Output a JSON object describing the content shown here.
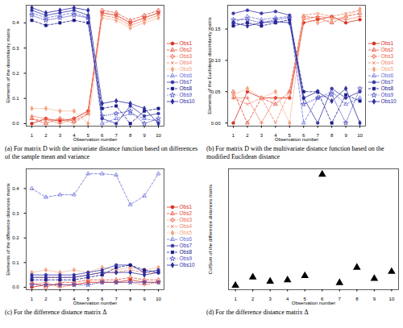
{
  "chart_data": [
    {
      "type": "line",
      "title": "(a) For matrix D with the univariate distance function based on differences of the sample mean and variance",
      "x_label": "Observation number",
      "y_label": "Elements of the dissimilarity matrix",
      "x": [
        1,
        2,
        3,
        4,
        5,
        6,
        7,
        8,
        9,
        10
      ],
      "xlim": [
        0.6,
        10.4
      ],
      "xticks": [
        1,
        2,
        3,
        4,
        5,
        6,
        7,
        8,
        9,
        10
      ],
      "ylim": [
        -0.01,
        0.47
      ],
      "yticks": [
        {
          "value": 0,
          "label": "0.0"
        },
        {
          "value": 0.1,
          "label": "0.1"
        },
        {
          "value": 0.2,
          "label": "0.2"
        },
        {
          "value": 0.3,
          "label": "0.3"
        },
        {
          "value": 0.4,
          "label": "0.4"
        }
      ],
      "legend": "right",
      "series": [
        {
          "name": "Obs1",
          "color": "#d7301f",
          "marker": "circle",
          "line_style": "solid",
          "values": [
            0.0,
            0.02,
            0.01,
            0.02,
            0.05,
            0.44,
            0.43,
            0.4,
            0.42,
            0.44
          ]
        },
        {
          "name": "Obs2",
          "color": "#e34a33",
          "marker": "triangle",
          "line_style": "dashed",
          "values": [
            0.02,
            0.0,
            0.02,
            0.01,
            0.04,
            0.45,
            0.44,
            0.41,
            0.43,
            0.45
          ]
        },
        {
          "name": "Obs3",
          "color": "#ef6548",
          "marker": "plus",
          "line_style": "dotted",
          "values": [
            0.03,
            0.02,
            0.0,
            0.02,
            0.05,
            0.43,
            0.42,
            0.39,
            0.41,
            0.43
          ]
        },
        {
          "name": "Obs4",
          "color": "#f0806a",
          "marker": "times",
          "line_style": "dashed",
          "values": [
            0.02,
            0.01,
            0.02,
            0.0,
            0.04,
            0.44,
            0.43,
            0.4,
            0.42,
            0.44
          ]
        },
        {
          "name": "Obs5",
          "color": "#f4a582",
          "marker": "diamond",
          "line_style": "dotted",
          "values": [
            0.06,
            0.06,
            0.05,
            0.05,
            0.0,
            0.42,
            0.41,
            0.38,
            0.4,
            0.42
          ]
        },
        {
          "name": "Obs6",
          "color": "#6a6fd6",
          "marker": "triangle",
          "line_style": "dashed",
          "values": [
            0.44,
            0.42,
            0.43,
            0.44,
            0.42,
            0.0,
            0.02,
            0.04,
            0.02,
            0.01
          ]
        },
        {
          "name": "Obs7",
          "color": "#3a3aa8",
          "marker": "circle",
          "line_style": "solid",
          "values": [
            0.45,
            0.43,
            0.44,
            0.45,
            0.43,
            0.02,
            0.0,
            0.07,
            0.03,
            0.04
          ]
        },
        {
          "name": "Obs8",
          "color": "#1a1a8a",
          "marker": "square",
          "line_style": "dashed",
          "values": [
            0.41,
            0.39,
            0.4,
            0.41,
            0.4,
            0.06,
            0.07,
            0.0,
            0.05,
            0.06
          ]
        },
        {
          "name": "Obs9",
          "color": "#4b4bc0",
          "marker": "star",
          "line_style": "dotted",
          "values": [
            0.43,
            0.41,
            0.42,
            0.43,
            0.42,
            0.03,
            0.04,
            0.05,
            0.0,
            0.02
          ]
        },
        {
          "name": "Obs10",
          "color": "#2c2c9e",
          "marker": "diamond",
          "line_style": "solid",
          "values": [
            0.46,
            0.44,
            0.45,
            0.46,
            0.45,
            0.08,
            0.09,
            0.08,
            0.06,
            0.0
          ]
        }
      ]
    },
    {
      "type": "line",
      "title": "(b) For matrix D with the multivariate distance function based on the modified Euclidean distance",
      "x_label": "Observation number",
      "y_label": "Elements of the Euclidean dissimilarity matrix",
      "x": [
        1,
        2,
        3,
        4,
        5,
        6,
        7,
        8,
        9,
        10
      ],
      "xlim": [
        0.6,
        10.4
      ],
      "xticks": [
        1,
        2,
        3,
        4,
        5,
        6,
        7,
        8,
        9,
        10
      ],
      "ylim": [
        -0.005,
        0.188
      ],
      "yticks": [
        {
          "value": 0,
          "label": "0.00"
        },
        {
          "value": 0.05,
          "label": "0.05"
        },
        {
          "value": 0.1,
          "label": "0.10"
        },
        {
          "value": 0.15,
          "label": "0.15"
        }
      ],
      "legend": "right",
      "series": [
        {
          "name": "Obs1",
          "color": "#d7301f",
          "marker": "circle",
          "line_style": "solid",
          "values": [
            0.0,
            0.05,
            0.04,
            0.04,
            0.04,
            0.16,
            0.165,
            0.17,
            0.16,
            0.165
          ]
        },
        {
          "name": "Obs2",
          "color": "#e34a33",
          "marker": "triangle",
          "line_style": "dashed",
          "values": [
            0.05,
            0.0,
            0.04,
            0.03,
            0.05,
            0.17,
            0.168,
            0.16,
            0.17,
            0.175
          ]
        },
        {
          "name": "Obs3",
          "color": "#ef6548",
          "marker": "plus",
          "line_style": "dotted",
          "values": [
            0.04,
            0.04,
            0.0,
            0.04,
            0.04,
            0.165,
            0.17,
            0.168,
            0.165,
            0.17
          ]
        },
        {
          "name": "Obs4",
          "color": "#f0806a",
          "marker": "times",
          "line_style": "dashed",
          "values": [
            0.04,
            0.03,
            0.04,
            0.0,
            0.05,
            0.172,
            0.175,
            0.17,
            0.175,
            0.18
          ]
        },
        {
          "name": "Obs5",
          "color": "#f4a582",
          "marker": "diamond",
          "line_style": "dotted",
          "values": [
            0.045,
            0.055,
            0.04,
            0.05,
            0.0,
            0.168,
            0.16,
            0.165,
            0.17,
            0.182
          ]
        },
        {
          "name": "Obs6",
          "color": "#6a6fd6",
          "marker": "triangle",
          "line_style": "dashed",
          "values": [
            0.16,
            0.17,
            0.165,
            0.168,
            0.17,
            0.0,
            0.04,
            0.05,
            0.03,
            0.04
          ]
        },
        {
          "name": "Obs7",
          "color": "#3a3aa8",
          "marker": "circle",
          "line_style": "solid",
          "values": [
            0.175,
            0.18,
            0.175,
            0.178,
            0.172,
            0.04,
            0.0,
            0.055,
            0.04,
            0.05
          ]
        },
        {
          "name": "Obs8",
          "color": "#1a1a8a",
          "marker": "square",
          "line_style": "dashed",
          "values": [
            0.155,
            0.16,
            0.155,
            0.16,
            0.165,
            0.05,
            0.05,
            0.0,
            0.045,
            0.035
          ]
        },
        {
          "name": "Obs9",
          "color": "#4b4bc0",
          "marker": "star",
          "line_style": "dotted",
          "values": [
            0.165,
            0.165,
            0.16,
            0.165,
            0.168,
            0.03,
            0.04,
            0.045,
            0.0,
            0.055
          ]
        },
        {
          "name": "Obs10",
          "color": "#2c2c9e",
          "marker": "diamond",
          "line_style": "solid",
          "values": [
            0.16,
            0.155,
            0.16,
            0.162,
            0.16,
            0.04,
            0.05,
            0.035,
            0.055,
            0.0
          ]
        }
      ]
    },
    {
      "type": "line",
      "title": "(c) For the difference distance matrix Δ",
      "x_label": "Observation number",
      "y_label": "Elements of the difference distances matrix",
      "x": [
        1,
        2,
        3,
        4,
        5,
        6,
        7,
        8,
        9,
        10
      ],
      "xlim": [
        0.6,
        10.4
      ],
      "xticks": [
        1,
        2,
        3,
        4,
        5,
        6,
        7,
        8,
        9,
        10
      ],
      "ylim": [
        -0.01,
        0.48
      ],
      "yticks": [
        {
          "value": 0,
          "label": "0.0"
        },
        {
          "value": 0.1,
          "label": "0.1"
        },
        {
          "value": 0.2,
          "label": "0.2"
        },
        {
          "value": 0.3,
          "label": "0.3"
        },
        {
          "value": 0.4,
          "label": "0.4"
        }
      ],
      "legend": "right",
      "series": [
        {
          "name": "Obs1",
          "color": "#d7301f",
          "marker": "circle",
          "line_style": "solid",
          "values": [
            0.0,
            0.01,
            0.01,
            0.01,
            0.02,
            0.02,
            0.02,
            0.03,
            0.02,
            0.02
          ]
        },
        {
          "name": "Obs2",
          "color": "#e34a33",
          "marker": "triangle",
          "line_style": "dashed",
          "values": [
            0.02,
            0.0,
            0.02,
            0.02,
            0.03,
            0.03,
            0.03,
            0.04,
            0.03,
            0.03
          ]
        },
        {
          "name": "Obs3",
          "color": "#ef6548",
          "marker": "plus",
          "line_style": "dotted",
          "values": [
            0.01,
            0.02,
            0.0,
            0.01,
            0.02,
            0.02,
            0.02,
            0.02,
            0.01,
            0.02
          ]
        },
        {
          "name": "Obs4",
          "color": "#f0806a",
          "marker": "times",
          "line_style": "dashed",
          "values": [
            0.04,
            0.04,
            0.04,
            0.04,
            0.05,
            0.06,
            0.06,
            0.07,
            0.06,
            0.06
          ]
        },
        {
          "name": "Obs5",
          "color": "#f4a582",
          "marker": "diamond",
          "line_style": "dotted",
          "values": [
            0.06,
            0.07,
            0.06,
            0.07,
            0.06,
            0.08,
            0.07,
            0.08,
            0.07,
            0.08
          ]
        },
        {
          "name": "Obs6",
          "color": "#6a6fd6",
          "marker": "triangle",
          "line_style": "dashed",
          "values": [
            0.4,
            0.365,
            0.375,
            0.375,
            0.46,
            0.46,
            0.455,
            0.335,
            0.37,
            0.46
          ]
        },
        {
          "name": "Obs7",
          "color": "#3a3aa8",
          "marker": "circle",
          "line_style": "solid",
          "values": [
            0.05,
            0.05,
            0.05,
            0.05,
            0.06,
            0.07,
            0.09,
            0.09,
            0.06,
            0.07
          ]
        },
        {
          "name": "Obs8",
          "color": "#1a1a8a",
          "marker": "square",
          "line_style": "dashed",
          "values": [
            0.03,
            0.03,
            0.03,
            0.03,
            0.04,
            0.05,
            0.08,
            0.09,
            0.07,
            0.06
          ]
        },
        {
          "name": "Obs9",
          "color": "#4b4bc0",
          "marker": "star",
          "line_style": "dotted",
          "values": [
            0.01,
            0.01,
            0.01,
            0.01,
            0.01,
            0.02,
            0.02,
            0.02,
            0.02,
            0.02
          ]
        },
        {
          "name": "Obs10",
          "color": "#2c2c9e",
          "marker": "diamond",
          "line_style": "solid",
          "values": [
            0.04,
            0.04,
            0.04,
            0.04,
            0.05,
            0.06,
            0.06,
            0.06,
            0.05,
            0.06
          ]
        }
      ]
    },
    {
      "type": "scatter",
      "title": "(d) For the difference distance matrix Δ",
      "x_label": "Observation number",
      "y_label": "CofSum of the difference distances matrix",
      "x": [
        1,
        2,
        3,
        4,
        5,
        6,
        7,
        8,
        9,
        10
      ],
      "values": [
        0.0,
        0.3,
        0.15,
        0.2,
        0.35,
        4.0,
        0.1,
        0.65,
        0.25,
        0.5
      ],
      "color": "#000000",
      "marker": "triangle",
      "xlim": [
        0.6,
        10.4
      ],
      "xticks": [
        1,
        2,
        3,
        4,
        5,
        6,
        7,
        8,
        9,
        10
      ],
      "ylim": [
        -0.15,
        4.2
      ],
      "tick_labels": "x"
    }
  ]
}
